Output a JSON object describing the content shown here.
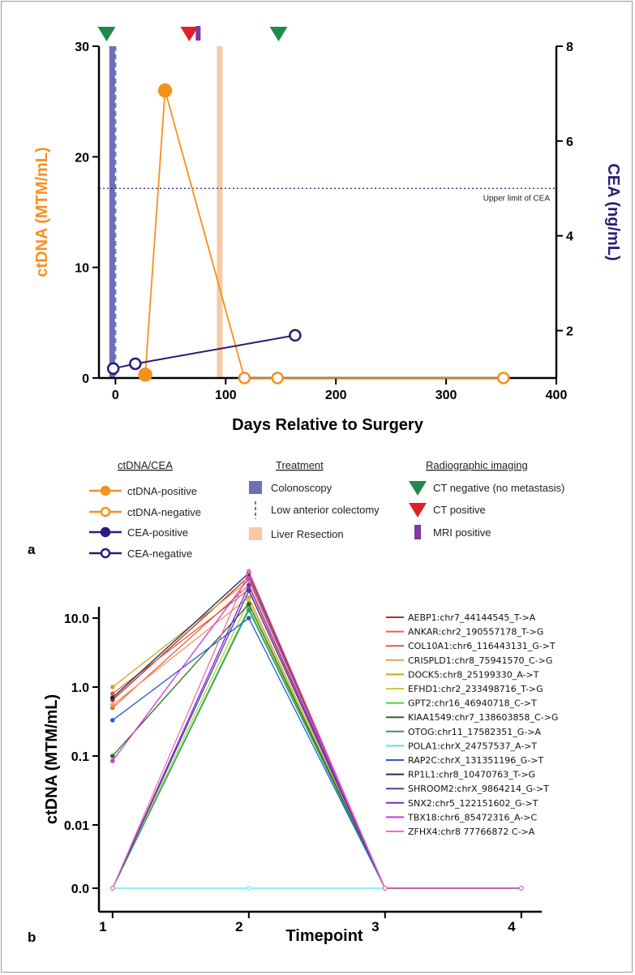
{
  "panels": {
    "a_label": "a",
    "b_label": "b"
  },
  "chart_data": [
    {
      "type": "line",
      "title": "",
      "xlabel": "Days Relative to Surgery",
      "ylabel_left": "ctDNA  (MTM/mL)",
      "ylabel_right": "CEA (ng/mL)",
      "xlim": [
        -15,
        400
      ],
      "x_ticks": [
        0,
        100,
        200,
        300,
        400
      ],
      "x_tick_labels": [
        "0",
        "100",
        "200",
        "300",
        "400"
      ],
      "ylim_left": [
        0,
        30
      ],
      "y_left_ticks": [
        0,
        10,
        20,
        30
      ],
      "y_left_tick_labels": [
        "0",
        "10",
        "20",
        "30"
      ],
      "ylim_right": [
        1,
        8
      ],
      "y_right_ticks": [
        2,
        4,
        6,
        8
      ],
      "y_right_tick_labels": [
        "2",
        "4",
        "6",
        "8"
      ],
      "threshold": {
        "axis": "right",
        "value": 5,
        "label": "Upper limit of CEA"
      },
      "ctdna_series": [
        {
          "x": 27,
          "y": 0.3,
          "status": "positive"
        },
        {
          "x": 45,
          "y": 26,
          "status": "positive"
        },
        {
          "x": 117,
          "y": 0,
          "status": "negative"
        },
        {
          "x": 147,
          "y": 0,
          "status": "negative"
        },
        {
          "x": 352,
          "y": 0,
          "status": "negative"
        }
      ],
      "cea_series": [
        {
          "x": -2,
          "y": 1.2,
          "status": "negative"
        },
        {
          "x": 18,
          "y": 1.3,
          "status": "negative"
        },
        {
          "x": 163,
          "y": 1.9,
          "status": "negative"
        }
      ],
      "treatments": [
        {
          "name": "Colonoscopy",
          "x": -3,
          "style": "bar"
        },
        {
          "name": "Low anterior colectomy",
          "x": 0,
          "style": "dashed"
        },
        {
          "name": "Liver Resection",
          "x": 92,
          "style": "band"
        }
      ],
      "imaging": [
        {
          "type": "CT negative",
          "x": -8
        },
        {
          "type": "CT positive",
          "x": 67
        },
        {
          "type": "MRI positive",
          "x": 75
        },
        {
          "type": "CT negative",
          "x": 148
        }
      ],
      "legend": {
        "groups": [
          {
            "title": "ctDNA/CEA",
            "items": [
              "ctDNA-positive",
              "ctDNA-negative",
              "CEA-positive",
              "CEA-negative"
            ]
          },
          {
            "title": "Treatment",
            "items": [
              "Colonoscopy",
              "Low anterior colectomy",
              "Liver Resection"
            ]
          },
          {
            "title": "Radiographic imaging",
            "items": [
              "CT negative (no metastasis)",
              "CT positive",
              "MRI positive"
            ]
          }
        ]
      },
      "colors": {
        "ctdna": "#f5901e",
        "cea": "#2e1a78",
        "colonoscopy": "#6e6eb8",
        "colectomy": "#4c8a8a",
        "liver": "#f7c9a6",
        "ct_negative": "#1f8a4c",
        "ct_positive": "#e0202a",
        "mri_positive": "#7b3aa0",
        "threshold": "#2e1a78"
      }
    },
    {
      "type": "line",
      "title": "",
      "xlabel": "Timepoint",
      "ylabel": "ctDNA  (MTM/mL)",
      "x": [
        1,
        2,
        3,
        4
      ],
      "x_tick_labels": [
        "1",
        "2",
        "3",
        "4"
      ],
      "xlim": [
        0.9,
        4.15
      ],
      "yscale": "log with zero",
      "y_ticks": [
        0,
        0.01,
        0.1,
        1,
        10
      ],
      "y_tick_labels": [
        "0.0",
        "0.01",
        "0.1",
        "1.0",
        "10.0"
      ],
      "series": [
        {
          "name": "AEBP1:chr7_44144545_T->A",
          "color": "#c0262c",
          "values": [
            0.65,
            40,
            0,
            0
          ]
        },
        {
          "name": "ANKAR:chr2_190557178_T->G",
          "color": "#e8604c",
          "values": [
            0.5,
            30,
            0,
            0
          ]
        },
        {
          "name": "COL10A1:chr6_116443131_G->T",
          "color": "#e0602a",
          "values": [
            0.8,
            26,
            0,
            0
          ]
        },
        {
          "name": "CRISPLD1:chr8_75941570_C->G",
          "color": "#f09a52",
          "values": [
            0.55,
            20,
            0,
            0
          ]
        },
        {
          "name": "DOCK5:chr8_25199330_A->T",
          "color": "#d4a418",
          "values": [
            1.0,
            35,
            0,
            0
          ]
        },
        {
          "name": "EFHD1:chr2_233498716_T->G",
          "color": "#b8d43a",
          "values": [
            0,
            18,
            0,
            0
          ]
        },
        {
          "name": "GPT2:chr16_46940718_C->T",
          "color": "#4fcf3a",
          "values": [
            0,
            14,
            0,
            0
          ]
        },
        {
          "name": "KIAA1549:chr7_138603858_C->G",
          "color": "#2a6a1e",
          "values": [
            0.1,
            16,
            0,
            0
          ]
        },
        {
          "name": "OTOG:chr11_17582351_G->A",
          "color": "#2e9a6e",
          "values": [
            0,
            13,
            0,
            0
          ]
        },
        {
          "name": "POLA1:chrX_24757537_A->T",
          "color": "#4ee6e6",
          "values": [
            0,
            0,
            0,
            0
          ]
        },
        {
          "name": "RAP2C:chrX_131351196_G->T",
          "color": "#2a5ad4",
          "values": [
            0.33,
            10,
            0,
            0
          ]
        },
        {
          "name": "RP1L1:chr8_10470763_T->G",
          "color": "#1e2a50",
          "values": [
            0.7,
            45,
            0,
            0
          ]
        },
        {
          "name": "SHROOM2:chrX_9864214_G->T",
          "color": "#4a3ab4",
          "values": [
            0,
            25,
            0,
            0
          ]
        },
        {
          "name": "SNX2:chr5_122151602_G->T",
          "color": "#7a28c8",
          "values": [
            0,
            30,
            0,
            0
          ]
        },
        {
          "name": "TBX18:chr6_85472316_A->C",
          "color": "#cc3ad6",
          "values": [
            0.085,
            38,
            0,
            0
          ]
        },
        {
          "name": "ZFHX4:chr8 77766872 C->A",
          "color": "#f070b0",
          "values": [
            0,
            48,
            0,
            0
          ]
        }
      ]
    }
  ]
}
